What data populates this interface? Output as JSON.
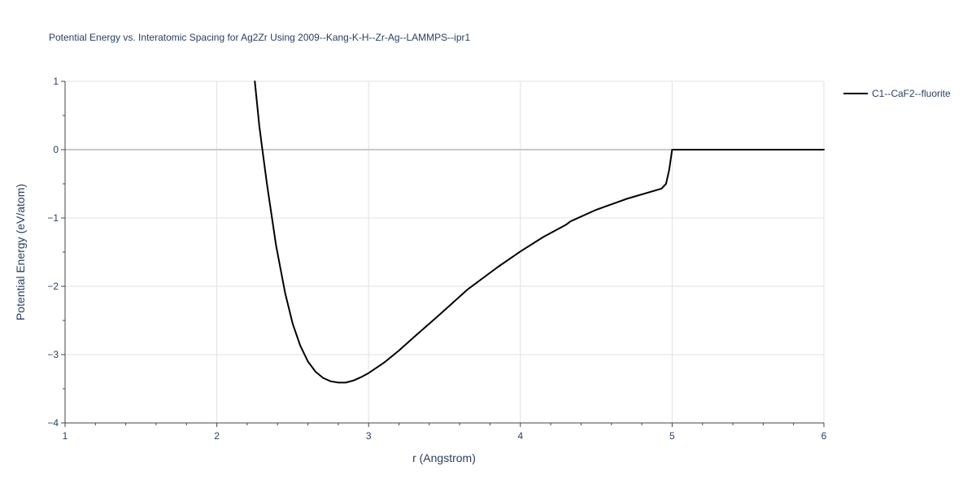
{
  "chart_data": {
    "type": "line",
    "title": "Potential Energy vs. Interatomic Spacing for Ag2Zr Using 2009--Kang-K-H--Zr-Ag--LAMMPS--ipr1",
    "xlabel": "r (Angstrom)",
    "ylabel": "Potential Energy (eV/atom)",
    "xlim": [
      1,
      6
    ],
    "ylim": [
      -4,
      1
    ],
    "x_ticks": [
      1,
      2,
      3,
      4,
      5,
      6
    ],
    "x_tick_labels": [
      "1",
      "2",
      "3",
      "4",
      "5",
      "6"
    ],
    "y_ticks": [
      1,
      0,
      -1,
      -2,
      -3,
      -4
    ],
    "y_tick_labels": [
      "1",
      "0",
      "−1",
      "−2",
      "−3",
      "−4"
    ],
    "grid": true,
    "legend_position": "top-right",
    "series": [
      {
        "name": "C1--CaF2--fluorite",
        "color": "#000000",
        "x": [
          2.25,
          2.28,
          2.3,
          2.33,
          2.36,
          2.39,
          2.42,
          2.45,
          2.5,
          2.55,
          2.6,
          2.65,
          2.7,
          2.75,
          2.8,
          2.85,
          2.9,
          2.95,
          3.0,
          3.1,
          3.2,
          3.3,
          3.45,
          3.65,
          3.85,
          4.0,
          4.15,
          4.3,
          4.33,
          4.4,
          4.5,
          4.7,
          4.93,
          4.96,
          4.98,
          5.0,
          5.2,
          5.5,
          6.0
        ],
        "y": [
          1.0,
          0.35,
          0.0,
          -0.5,
          -0.95,
          -1.4,
          -1.75,
          -2.1,
          -2.55,
          -2.87,
          -3.1,
          -3.25,
          -3.34,
          -3.39,
          -3.41,
          -3.41,
          -3.38,
          -3.33,
          -3.27,
          -3.12,
          -2.94,
          -2.74,
          -2.45,
          -2.05,
          -1.72,
          -1.49,
          -1.28,
          -1.1,
          -1.05,
          -0.98,
          -0.88,
          -0.72,
          -0.57,
          -0.5,
          -0.3,
          0.0,
          0.0,
          0.0,
          0.0
        ]
      }
    ]
  }
}
